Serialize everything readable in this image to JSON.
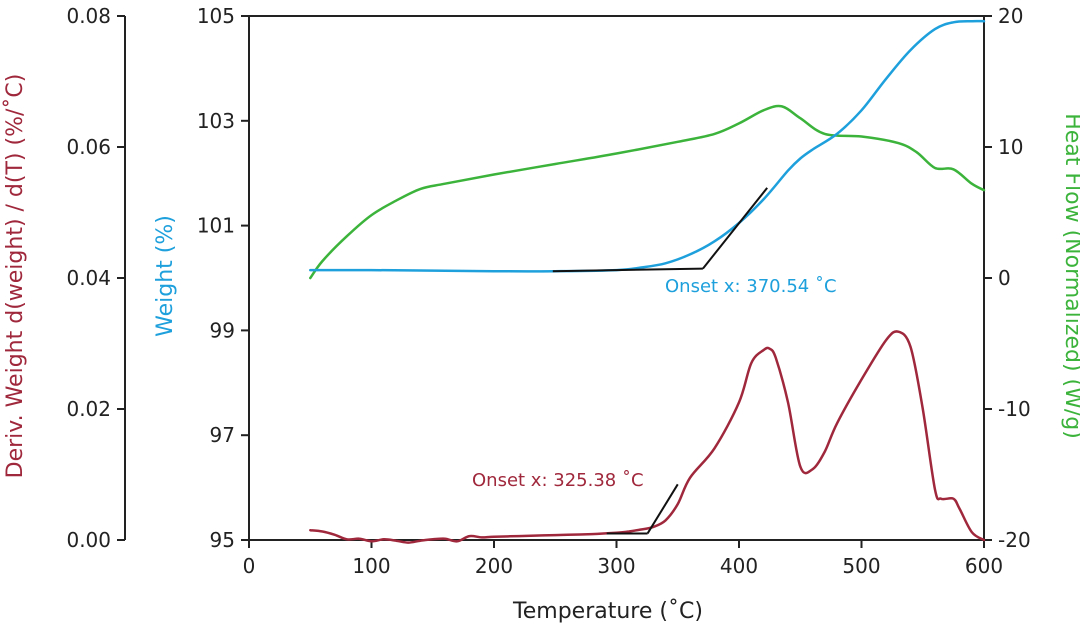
{
  "chart_data": {
    "type": "line",
    "x_axis": {
      "label": "Temperature (˚C)",
      "range": [
        0,
        600
      ],
      "ticks": [
        "0",
        "100",
        "200",
        "300",
        "400",
        "500",
        "600"
      ]
    },
    "axes": {
      "deriv": {
        "label": "Deriv. Weight d(weight) / d(T) (%/˚C)",
        "range": [
          0,
          0.08
        ],
        "ticks": [
          "0.00",
          "0.02",
          "0.04",
          "0.06",
          "0.08"
        ],
        "color": "#a0283c"
      },
      "weight": {
        "label": "Weight (%)",
        "range": [
          95,
          105
        ],
        "ticks": [
          "95",
          "97",
          "99",
          "101",
          "103",
          "105"
        ],
        "color": "#1ea0dc"
      },
      "heatflow": {
        "label": "Heat Flow (Normalized) (W/g)",
        "range": [
          -20,
          20
        ],
        "ticks": [
          "-20",
          "-10",
          "0",
          "10",
          "20"
        ],
        "color": "#3cb43c"
      }
    },
    "series": [
      {
        "name": "Heat Flow",
        "axis": "heatflow",
        "color": "#3cb43c",
        "x": [
          50,
          60,
          80,
          100,
          120,
          140,
          160,
          200,
          250,
          300,
          350,
          380,
          400,
          420,
          435,
          450,
          470,
          500,
          530,
          545,
          560,
          575,
          590,
          600
        ],
        "y": [
          0,
          1.3,
          3.2,
          4.8,
          5.9,
          6.8,
          7.2,
          7.9,
          8.7,
          9.5,
          10.4,
          11.0,
          11.8,
          12.8,
          13.1,
          12.2,
          11.0,
          10.8,
          10.3,
          9.6,
          8.4,
          8.3,
          7.2,
          6.7
        ]
      },
      {
        "name": "Weight",
        "axis": "weight",
        "color": "#1ea0dc",
        "x": [
          50,
          100,
          200,
          250,
          300,
          320,
          340,
          360,
          380,
          400,
          420,
          440,
          450,
          460,
          480,
          500,
          520,
          540,
          560,
          575,
          590,
          600
        ],
        "y": [
          100.15,
          100.15,
          100.13,
          100.13,
          100.15,
          100.2,
          100.28,
          100.45,
          100.7,
          101.05,
          101.5,
          102.05,
          102.28,
          102.45,
          102.75,
          103.2,
          103.8,
          104.35,
          104.75,
          104.88,
          104.9,
          104.9
        ]
      },
      {
        "name": "Deriv. Weight",
        "axis": "deriv",
        "color": "#a0283c",
        "x": [
          50,
          60,
          70,
          80,
          90,
          100,
          110,
          120,
          130,
          140,
          150,
          160,
          170,
          180,
          190,
          200,
          220,
          240,
          260,
          280,
          300,
          310,
          320,
          330,
          340,
          350,
          360,
          380,
          400,
          410,
          420,
          425,
          430,
          440,
          450,
          460,
          470,
          480,
          500,
          520,
          530,
          540,
          550,
          560,
          565,
          575,
          580,
          590,
          600
        ],
        "y": [
          0.0015,
          0.0013,
          0.0008,
          0.0001,
          0.0002,
          -0.0002,
          0.0001,
          -0.0001,
          -0.0004,
          -0.0001,
          0.0001,
          0.0002,
          -0.0002,
          0.0006,
          0.0004,
          0.0005,
          0.0006,
          0.0007,
          0.0008,
          0.0009,
          0.0011,
          0.0013,
          0.0016,
          0.002,
          0.003,
          0.0055,
          0.0095,
          0.014,
          0.021,
          0.027,
          0.029,
          0.0292,
          0.0278,
          0.021,
          0.0112,
          0.0108,
          0.0135,
          0.0178,
          0.0245,
          0.0305,
          0.0318,
          0.0295,
          0.02,
          0.0077,
          0.0063,
          0.0063,
          0.0048,
          0.0012,
          0.0
        ]
      }
    ],
    "annotations": [
      {
        "name": "weight-onset",
        "text": "Onset x: 370.54 ˚C",
        "color": "#1ea0dc",
        "baseline": {
          "axis": "weight",
          "x": [
            248,
            370.54
          ],
          "y": [
            100.13,
            100.18
          ]
        },
        "tangent": {
          "axis": "weight",
          "x": [
            370.54,
            423
          ],
          "y": [
            100.18,
            101.72
          ]
        }
      },
      {
        "name": "deriv-onset",
        "text": "Onset x: 325.38 ˚C",
        "color": "#a0283c",
        "baseline": {
          "axis": "deriv",
          "x": [
            292,
            325.38
          ],
          "y": [
            0.001,
            0.001
          ]
        },
        "tangent": {
          "axis": "deriv",
          "x": [
            325.38,
            350
          ],
          "y": [
            0.001,
            0.0085
          ]
        }
      }
    ]
  }
}
